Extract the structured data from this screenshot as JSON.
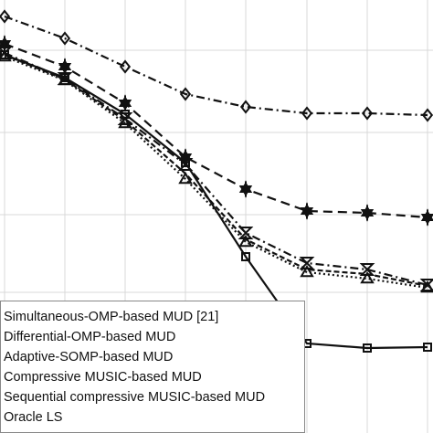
{
  "chart_data": {
    "type": "line",
    "x": [
      5,
      71,
      137,
      203,
      269,
      336,
      402,
      468
    ],
    "xlim": [
      0,
      474
    ],
    "ylim": [
      0,
      474
    ],
    "xticks": [
      5,
      71,
      137,
      203,
      269,
      336,
      402,
      468
    ],
    "yticks": [
      154,
      239,
      329,
      419
    ],
    "grid": true,
    "series": [
      {
        "name": "Simultaneous-OMP-based MUD [21]",
        "color": "#111111",
        "dash": "9,4,2,4",
        "marker": "diamond",
        "values": [
          456,
          432,
          401,
          371,
          357,
          350,
          350,
          348
        ]
      },
      {
        "name": "Differential-OMP-based MUD",
        "color": "#111111",
        "dash": "10,6",
        "marker": "star",
        "values": [
          426,
          401,
          361,
          302,
          267,
          243,
          241,
          236
        ]
      },
      {
        "name": "Adaptive-SOMP-based MUD",
        "color": "#111111",
        "dash": "9,4,2,4",
        "marker": "hourglass",
        "values": [
          416,
          388,
          344,
          294,
          219,
          186,
          179,
          162
        ]
      },
      {
        "name": "Compressive MUSIC-based MUD",
        "color": "#111111",
        "dash": "2,3",
        "marker": "triangle",
        "values": [
          412,
          386,
          339,
          278,
          209,
          176,
          169,
          159
        ]
      },
      {
        "name": "Sequential compressive MUSIC-based MUD",
        "color": "#111111",
        "dash": "6,3",
        "marker": "none",
        "values": [
          414,
          387,
          342,
          284,
          212,
          179,
          174,
          161
        ]
      },
      {
        "name": "Oracle LS",
        "color": "#111111",
        "dash": "",
        "marker": "square",
        "values": [
          414,
          389,
          349,
          296,
          193,
          98,
          93,
          94
        ]
      }
    ],
    "legend": "lower-left"
  }
}
